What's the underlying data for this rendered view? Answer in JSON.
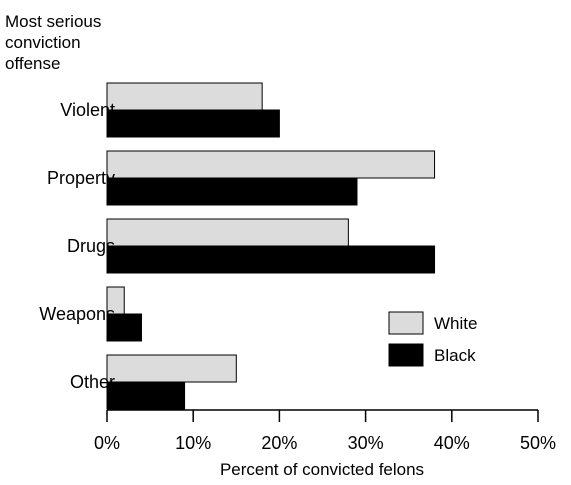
{
  "chart_data": {
    "type": "bar",
    "orientation": "horizontal",
    "title": "",
    "ylabel": "Most serious conviction offense",
    "ylabel_lines": [
      "Most serious",
      "conviction",
      "offense"
    ],
    "xlabel": "Percent of convicted felons",
    "categories": [
      "Violent",
      "Property",
      "Drugs",
      "Weapons",
      "Other"
    ],
    "series": [
      {
        "name": "White",
        "values": [
          18,
          38,
          28,
          2,
          15
        ],
        "color": "#dcdcdc"
      },
      {
        "name": "Black",
        "values": [
          20,
          29,
          38,
          4,
          9
        ],
        "color": "#000000"
      }
    ],
    "xlim": [
      0,
      50
    ],
    "xticks": [
      0,
      10,
      20,
      30,
      40,
      50
    ],
    "xtick_labels": [
      "0%",
      "10%",
      "20%",
      "30%",
      "40%",
      "50%"
    ],
    "grid": false,
    "legend_position": "right"
  }
}
